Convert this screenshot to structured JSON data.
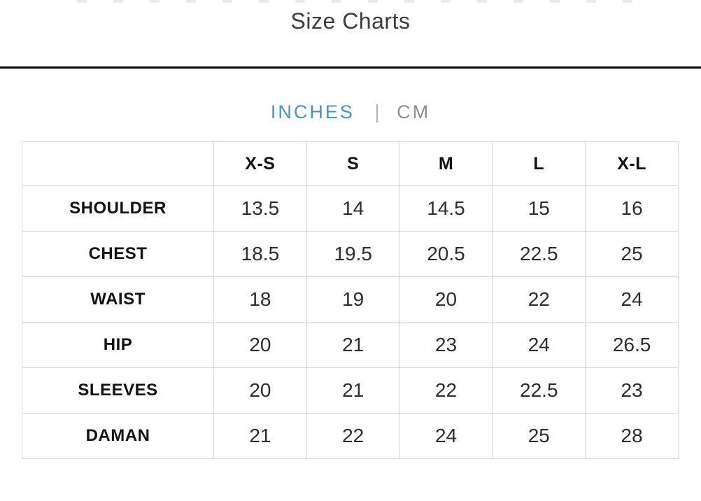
{
  "page": {
    "title": "Size Charts"
  },
  "unit_toggle": {
    "inches_label": "INCHES",
    "separator": "|",
    "cm_label": "CM",
    "active_color": "#4a90c4",
    "inactive_color": "#8f8f8f"
  },
  "size_table": {
    "header": [
      "X-S",
      "S",
      "M",
      "L",
      "X-L"
    ],
    "rows": [
      {
        "label": "SHOULDER",
        "values": [
          "13.5",
          "14",
          "14.5",
          "15",
          "16"
        ]
      },
      {
        "label": "CHEST",
        "values": [
          "18.5",
          "19.5",
          "20.5",
          "22.5",
          "25"
        ]
      },
      {
        "label": "WAIST",
        "values": [
          "18",
          "19",
          "20",
          "22",
          "24"
        ]
      },
      {
        "label": "HIP",
        "values": [
          "20",
          "21",
          "23",
          "24",
          "26.5"
        ]
      },
      {
        "label": "SLEEVES",
        "values": [
          "20",
          "21",
          "22",
          "22.5",
          "23"
        ]
      },
      {
        "label": "DAMAN",
        "values": [
          "21",
          "22",
          "24",
          "25",
          "28"
        ]
      }
    ]
  }
}
